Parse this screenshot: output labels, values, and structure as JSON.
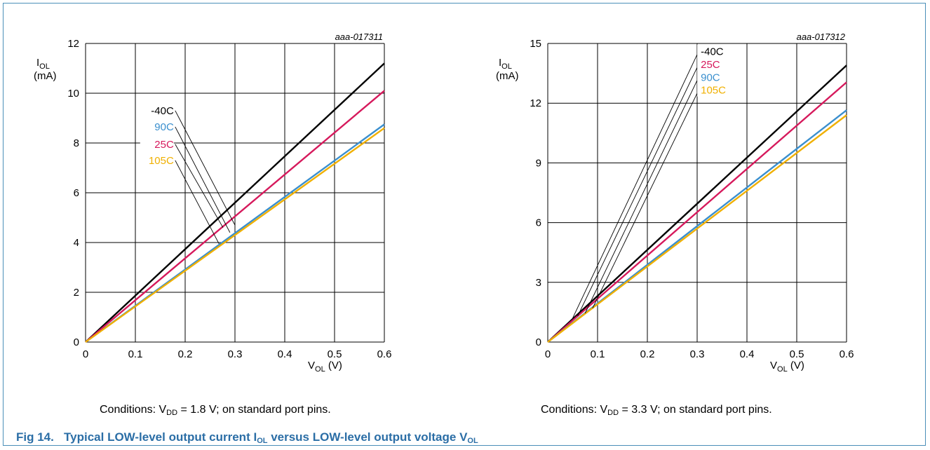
{
  "chart_data": [
    {
      "type": "line",
      "id_label": "aaa-017311",
      "xlabel_main": "V",
      "xlabel_sub": "OL",
      "xlabel_unit": " (V)",
      "ylabel_main": "I",
      "ylabel_sub": "OL",
      "ylabel_unit": "(mA)",
      "xlim": [
        0,
        0.6
      ],
      "ylim": [
        0,
        12
      ],
      "x_ticks": [
        0,
        0.1,
        0.2,
        0.3,
        0.4,
        0.5,
        0.6
      ],
      "x_tick_labels": [
        "0",
        "0.1",
        "0.2",
        "0.3",
        "0.4",
        "0.5",
        "0.6"
      ],
      "y_ticks": [
        0,
        2,
        4,
        6,
        8,
        10,
        12
      ],
      "y_tick_labels": [
        "0",
        "2",
        "4",
        "6",
        "8",
        "10",
        "12"
      ],
      "grid": true,
      "series": [
        {
          "name": "-40C",
          "color": "#000000",
          "x": [
            0,
            0.6
          ],
          "y": [
            0,
            11.2
          ]
        },
        {
          "name": "90C",
          "color": "#3a8fce",
          "x": [
            0,
            0.6
          ],
          "y": [
            0,
            8.75
          ]
        },
        {
          "name": "25C",
          "color": "#d6195c",
          "x": [
            0,
            0.6
          ],
          "y": [
            0,
            10.1
          ]
        },
        {
          "name": "105C",
          "color": "#f0b000",
          "x": [
            0,
            0.6
          ],
          "y": [
            0,
            8.6
          ]
        }
      ],
      "labels": [
        {
          "text": "-40C",
          "color": "#000000",
          "at": [
            0.18,
            9.3
          ],
          "target": [
            0.3,
            4.7
          ]
        },
        {
          "text": "90C",
          "color": "#3a8fce",
          "at": [
            0.18,
            8.65
          ],
          "target": [
            0.29,
            4.4
          ]
        },
        {
          "text": "25C",
          "color": "#d6195c",
          "at": [
            0.18,
            7.95
          ],
          "target": [
            0.276,
            4.6
          ]
        },
        {
          "text": "105C",
          "color": "#f0b000",
          "at": [
            0.18,
            7.3
          ],
          "target": [
            0.268,
            3.95
          ]
        }
      ],
      "conditions": {
        "pre": "Conditions: V",
        "sub": "DD",
        "post": " = 1.8 V; on standard port pins."
      }
    },
    {
      "type": "line",
      "id_label": "aaa-017312",
      "xlabel_main": "V",
      "xlabel_sub": "OL",
      "xlabel_unit": " (V)",
      "ylabel_main": "I",
      "ylabel_sub": "OL",
      "ylabel_unit": "(mA)",
      "xlim": [
        0,
        0.6
      ],
      "ylim": [
        0,
        15
      ],
      "x_ticks": [
        0,
        0.1,
        0.2,
        0.3,
        0.4,
        0.5,
        0.6
      ],
      "x_tick_labels": [
        "0",
        "0.1",
        "0.2",
        "0.3",
        "0.4",
        "0.5",
        "0.6"
      ],
      "y_ticks": [
        0,
        3,
        6,
        9,
        12,
        15
      ],
      "y_tick_labels": [
        "0",
        "3",
        "6",
        "9",
        "12",
        "15"
      ],
      "grid": true,
      "series": [
        {
          "name": "-40C",
          "color": "#000000",
          "x": [
            0,
            0.6
          ],
          "y": [
            0,
            13.9
          ]
        },
        {
          "name": "25C",
          "color": "#d6195c",
          "x": [
            0,
            0.6
          ],
          "y": [
            0,
            13.05
          ]
        },
        {
          "name": "90C",
          "color": "#3a8fce",
          "x": [
            0,
            0.6
          ],
          "y": [
            0,
            11.65
          ]
        },
        {
          "name": "105C",
          "color": "#f0b000",
          "x": [
            0,
            0.6
          ],
          "y": [
            0,
            11.4
          ]
        }
      ],
      "labels": [
        {
          "text": "-40C",
          "color": "#000000",
          "at": [
            0.303,
            14.6
          ],
          "target": [
            0.05,
            1.2
          ]
        },
        {
          "text": "25C",
          "color": "#d6195c",
          "at": [
            0.303,
            13.95
          ],
          "target": [
            0.06,
            1.3
          ]
        },
        {
          "text": "90C",
          "color": "#3a8fce",
          "at": [
            0.303,
            13.3
          ],
          "target": [
            0.075,
            1.45
          ]
        },
        {
          "text": "105C",
          "color": "#f0b000",
          "at": [
            0.303,
            12.65
          ],
          "target": [
            0.09,
            1.7
          ]
        }
      ],
      "conditions": {
        "pre": "Conditions: V",
        "sub": "DD",
        "post": " = 3.3 V; on standard port pins."
      }
    }
  ],
  "caption": {
    "prefix": "Fig 14.",
    "text1": "Typical LOW-level output current I",
    "sub1": "OL",
    "text2": " versus LOW-level output voltage V",
    "sub2": "OL"
  }
}
